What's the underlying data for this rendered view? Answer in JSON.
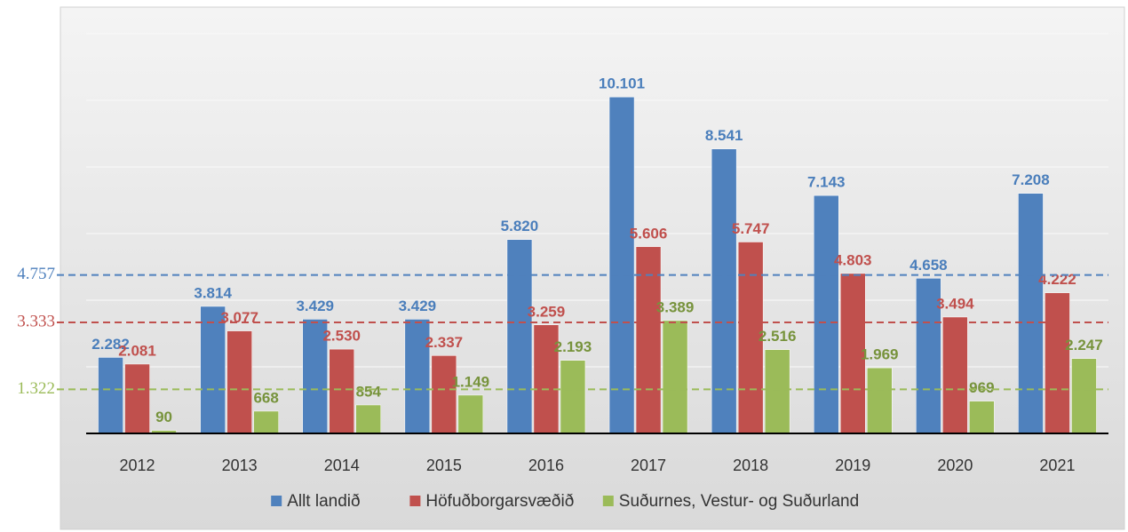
{
  "chart_data": {
    "type": "bar",
    "categories": [
      "2012",
      "2013",
      "2014",
      "2015",
      "2016",
      "2017",
      "2018",
      "2019",
      "2020",
      "2021"
    ],
    "series": [
      {
        "name": "Allt landið",
        "color": "#4f81bd",
        "label_color": "#4a7ebb",
        "values": [
          2282,
          3814,
          3429,
          3429,
          5820,
          10101,
          8541,
          7143,
          4658,
          7208
        ],
        "value_labels": [
          "2.282",
          "3.814",
          "3.429",
          "3.429",
          "5.820",
          "10.101",
          "8.541",
          "7.143",
          "4.658",
          "7.208"
        ]
      },
      {
        "name": "Höfuðborgarsvæðið",
        "color": "#c0504d",
        "label_color": "#c0504d",
        "values": [
          2081,
          3077,
          2530,
          2337,
          3259,
          5606,
          5747,
          4803,
          3494,
          4222
        ],
        "value_labels": [
          "2.081",
          "3.077",
          "2.530",
          "2.337",
          "3.259",
          "5.606",
          "5.747",
          "4.803",
          "3.494",
          "4.222"
        ]
      },
      {
        "name": "Suðurnes, Vestur- og Suðurland",
        "color": "#9bbb59",
        "label_color": "#77933c",
        "values": [
          90,
          668,
          854,
          1149,
          2193,
          3389,
          2516,
          1969,
          969,
          2247
        ],
        "value_labels": [
          "90",
          "668",
          "854",
          "1.149",
          "2.193",
          "3.389",
          "2.516",
          "1.969",
          "969",
          "2.247"
        ]
      }
    ],
    "reference_lines": [
      {
        "value": 4757,
        "label": "4.757",
        "color": "#4f81bd"
      },
      {
        "value": 3333,
        "label": "3.333",
        "color": "#c0504d"
      },
      {
        "value": 1322,
        "label": "1.322",
        "color": "#9bbb59"
      }
    ],
    "ylim": [
      0,
      12000
    ],
    "yticks": [
      0,
      2000,
      4000,
      6000,
      8000,
      10000,
      12000
    ],
    "show_ytick_labels": false,
    "grid": true,
    "legend": "bottom"
  }
}
